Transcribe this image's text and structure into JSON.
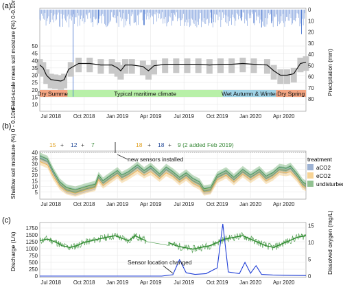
{
  "chart_data": [
    {
      "panel_label": "(a)",
      "type": "line",
      "ylabel": "Field-scale mean soil moisture (%) 0-0.10m",
      "ylabel_right": "Precipitation (mm)",
      "ylim": [
        10,
        50
      ],
      "y_ticks": [
        10,
        15,
        20,
        25,
        30,
        35,
        40,
        45,
        50
      ],
      "y2_ticks": [
        0,
        10,
        20,
        30,
        40,
        50,
        60,
        70,
        80
      ],
      "y2_reversed": true,
      "x_ticks": [
        "Jul 2018",
        "Oct 2018",
        "Jan 2019",
        "Apr 2019",
        "Jul 2019",
        "Oct 2019",
        "Jan 2020",
        "Apr 2020",
        "Jul 2020"
      ],
      "periods": [
        {
          "label": "Dry Summer",
          "color": "#f4a582"
        },
        {
          "label": "Typical maritime climate",
          "color": "#b8f0a8"
        },
        {
          "label": "Wet Autumn & Winter",
          "color": "#9fd3e6"
        },
        {
          "label": "Dry Spring",
          "color": "#f4a582"
        }
      ],
      "series": [
        {
          "values": [
            [
              0,
              37
            ],
            [
              0.3,
              35
            ],
            [
              0.6,
              30
            ],
            [
              1,
              27
            ],
            [
              1.4,
              26.5
            ],
            [
              1.9,
              26
            ],
            [
              2.2,
              27
            ],
            [
              2.6,
              34
            ],
            [
              2.8,
              35
            ],
            [
              3.5,
              38
            ],
            [
              4.5,
              38
            ],
            [
              5.5,
              37
            ],
            [
              6.5,
              37
            ],
            [
              7,
              35
            ],
            [
              7.3,
              33
            ],
            [
              7.7,
              37
            ],
            [
              8.3,
              37
            ],
            [
              9.3,
              36
            ],
            [
              9.8,
              33
            ],
            [
              10.3,
              36.5
            ],
            [
              11.3,
              37.5
            ],
            [
              12.3,
              37.5
            ],
            [
              13.3,
              37.5
            ],
            [
              14.3,
              37.5
            ],
            [
              15.3,
              37
            ],
            [
              16.3,
              37.5
            ],
            [
              17.3,
              37.5
            ],
            [
              18.3,
              38
            ],
            [
              19.3,
              37.5
            ],
            [
              20.5,
              37
            ],
            [
              21.1,
              33
            ],
            [
              21.7,
              30
            ],
            [
              22.3,
              30
            ],
            [
              22.9,
              31
            ],
            [
              23.5,
              38
            ],
            [
              24,
              39
            ]
          ]
        }
      ],
      "precip_spikes": [
        [
          3,
          78
        ],
        [
          5.3,
          12
        ],
        [
          9.4,
          14
        ],
        [
          12,
          10
        ],
        [
          15.5,
          12
        ],
        [
          18.2,
          10
        ],
        [
          19.3,
          12
        ],
        [
          20,
          16
        ],
        [
          20.9,
          12
        ],
        [
          23.6,
          22
        ]
      ]
    },
    {
      "panel_label": "(b)",
      "type": "line",
      "ylabel": "Shallow soil moisture (%) 0 - 0.10m",
      "ylim": [
        0,
        40
      ],
      "y_ticks": [
        5,
        10,
        15,
        20,
        25,
        30,
        35,
        40
      ],
      "x_ticks": [
        "Jul 2018",
        "Oct 2018",
        "Jan 2019",
        "Apr 2019",
        "Jul 2019",
        "Oct 2019",
        "Jan 2020",
        "Apr 2020"
      ],
      "legend_title": "treatment",
      "legend_placement": "right",
      "annotation": "new sensors installed",
      "counts_before": {
        "a": "15",
        "b": "12",
        "c": "7",
        "plus": "+"
      },
      "counts_after": {
        "a": "18",
        "b": "18",
        "c": "9 (2 added Feb 2019)",
        "plus": "+"
      },
      "series": [
        {
          "name": "aCO2",
          "color": "#5b7fb5",
          "values": [
            [
              0,
              35
            ],
            [
              0.7,
              32
            ],
            [
              1.2,
              22
            ],
            [
              1.8,
              12
            ],
            [
              2.4,
              7
            ],
            [
              3.2,
              5
            ],
            [
              4.2,
              8
            ],
            [
              5,
              10
            ],
            [
              5.3,
              18
            ],
            [
              5.7,
              13
            ],
            [
              6.4,
              18
            ],
            [
              7,
              22
            ],
            [
              7.4,
              18
            ],
            [
              8,
              21
            ],
            [
              8.8,
              27
            ],
            [
              9.4,
              22
            ],
            [
              10,
              26
            ],
            [
              10.8,
              19
            ],
            [
              11.4,
              25
            ],
            [
              12,
              21
            ],
            [
              12.6,
              16
            ],
            [
              13.2,
              20
            ],
            [
              13.8,
              15
            ],
            [
              14.4,
              12
            ],
            [
              14.8,
              6
            ],
            [
              15.4,
              7
            ],
            [
              16,
              18
            ],
            [
              16.8,
              22
            ],
            [
              17.5,
              16
            ],
            [
              18.3,
              23
            ],
            [
              19,
              18
            ],
            [
              19.8,
              23
            ],
            [
              20.4,
              17
            ],
            [
              21,
              20
            ],
            [
              21.6,
              25
            ],
            [
              22.2,
              24
            ],
            [
              22.6,
              26
            ],
            [
              23.2,
              19
            ],
            [
              23.7,
              12
            ],
            [
              24,
              10
            ]
          ]
        },
        {
          "name": "eCO2",
          "color": "#f2b64f",
          "values": [
            [
              0,
              32
            ],
            [
              0.7,
              29
            ],
            [
              1.2,
              19
            ],
            [
              1.8,
              10
            ],
            [
              2.4,
              6
            ],
            [
              3.2,
              4
            ],
            [
              4.2,
              7
            ],
            [
              5,
              9
            ],
            [
              5.3,
              16
            ],
            [
              5.7,
              11
            ],
            [
              6.4,
              16
            ],
            [
              7,
              20
            ],
            [
              7.4,
              16
            ],
            [
              8,
              19
            ],
            [
              8.8,
              24
            ],
            [
              9.4,
              20
            ],
            [
              10,
              23
            ],
            [
              10.8,
              17
            ],
            [
              11.4,
              22
            ],
            [
              12,
              19
            ],
            [
              12.6,
              14
            ],
            [
              13.2,
              18
            ],
            [
              13.8,
              13
            ],
            [
              14.4,
              10
            ],
            [
              14.8,
              5
            ],
            [
              15.4,
              6
            ],
            [
              16,
              16
            ],
            [
              16.8,
              20
            ],
            [
              17.5,
              14
            ],
            [
              18.3,
              21
            ],
            [
              19,
              16
            ],
            [
              19.8,
              21
            ],
            [
              20.4,
              15
            ],
            [
              21,
              18
            ],
            [
              21.6,
              23
            ],
            [
              22.2,
              22
            ],
            [
              22.6,
              23
            ],
            [
              23.2,
              17
            ],
            [
              23.7,
              10
            ],
            [
              24,
              9
            ]
          ]
        },
        {
          "name": "undisturbed",
          "color": "#4a9a4a",
          "values": [
            [
              0,
              37
            ],
            [
              0.7,
              34
            ],
            [
              1.2,
              24
            ],
            [
              1.8,
              14
            ],
            [
              2.4,
              9
            ],
            [
              3.2,
              7
            ],
            [
              4.2,
              10
            ],
            [
              5,
              12
            ],
            [
              5.3,
              20
            ],
            [
              5.7,
              15
            ],
            [
              6.4,
              20
            ],
            [
              7,
              24
            ],
            [
              7.4,
              20
            ],
            [
              8,
              23
            ],
            [
              8.8,
              29
            ],
            [
              9.4,
              24
            ],
            [
              10,
              28
            ],
            [
              10.8,
              21
            ],
            [
              11.4,
              27
            ],
            [
              12,
              23
            ],
            [
              12.6,
              18
            ],
            [
              13.2,
              22
            ],
            [
              13.8,
              17
            ],
            [
              14.4,
              14
            ],
            [
              14.8,
              8
            ],
            [
              15.4,
              9
            ],
            [
              16,
              20
            ],
            [
              16.8,
              24
            ],
            [
              17.5,
              18
            ],
            [
              18.3,
              25
            ],
            [
              19,
              20
            ],
            [
              19.8,
              25
            ],
            [
              20.4,
              19
            ],
            [
              21,
              22
            ],
            [
              21.6,
              27
            ],
            [
              22.2,
              26
            ],
            [
              22.6,
              28
            ],
            [
              23.2,
              21
            ],
            [
              23.7,
              14
            ],
            [
              24,
              12
            ]
          ]
        }
      ]
    },
    {
      "panel_label": "(c)",
      "type": "line",
      "ylabel": "Discharge (L/s)",
      "ylabel_right": "Dissolved oxygen (mg/L)",
      "ylim": [
        0,
        1900
      ],
      "y_ticks": [
        0,
        250,
        500,
        750,
        1000,
        1250,
        1500,
        1750
      ],
      "y2_ticks": [
        0,
        5,
        10,
        15
      ],
      "x_ticks": [
        "Jul 2018",
        "Oct 2018",
        "Jan 2019",
        "Apr 2019",
        "Jul 2019",
        "Oct 2019",
        "Jan 2020",
        "Apr 2020",
        "Jul 2020"
      ],
      "annotation": "Sensor location changed",
      "series": [
        {
          "name": "Dissolved oxygen",
          "color": "#2e8b2e",
          "values": [
            [
              0,
              10.5
            ],
            [
              0.7,
              11
            ],
            [
              1.5,
              10
            ],
            [
              2,
              9
            ],
            [
              2.7,
              8.5
            ],
            [
              3.3,
              9
            ],
            [
              4,
              10
            ],
            [
              4.7,
              10.5
            ],
            [
              5.3,
              11
            ],
            [
              6,
              11.5
            ],
            [
              6.8,
              12
            ],
            [
              7.6,
              11
            ],
            [
              8,
              10.5
            ],
            [
              8.6,
              12
            ],
            [
              9.2,
              11
            ],
            [
              9.6,
              10.5
            ],
            [
              10.3,
              null
            ],
            [
              11.3,
              null
            ],
            [
              11.6,
              10
            ],
            [
              12.3,
              9
            ],
            [
              13,
              8.5
            ],
            [
              13.8,
              8
            ],
            [
              14.5,
              8.5
            ],
            [
              15.3,
              9
            ],
            [
              16,
              10
            ],
            [
              16.7,
              11
            ],
            [
              17.5,
              11.5
            ],
            [
              18.3,
              12
            ],
            [
              19,
              11
            ],
            [
              19.7,
              10
            ],
            [
              20.4,
              9
            ],
            [
              21.1,
              8.5
            ],
            [
              21.8,
              9.5
            ],
            [
              22.5,
              10.5
            ],
            [
              23.2,
              11.5
            ],
            [
              24,
              12
            ]
          ]
        },
        {
          "name": "Discharge",
          "color": "#1f3ed6",
          "values": [
            [
              0,
              0
            ],
            [
              11,
              0
            ],
            [
              12,
              50
            ],
            [
              12.6,
              600
            ],
            [
              13.2,
              120
            ],
            [
              14,
              60
            ],
            [
              15,
              90
            ],
            [
              16,
              300
            ],
            [
              16.5,
              1900
            ],
            [
              17,
              150
            ],
            [
              18,
              90
            ],
            [
              18.5,
              500
            ],
            [
              19,
              100
            ],
            [
              19.5,
              380
            ],
            [
              20,
              60
            ],
            [
              21,
              40
            ],
            [
              22,
              30
            ],
            [
              24,
              20
            ]
          ]
        }
      ]
    }
  ]
}
